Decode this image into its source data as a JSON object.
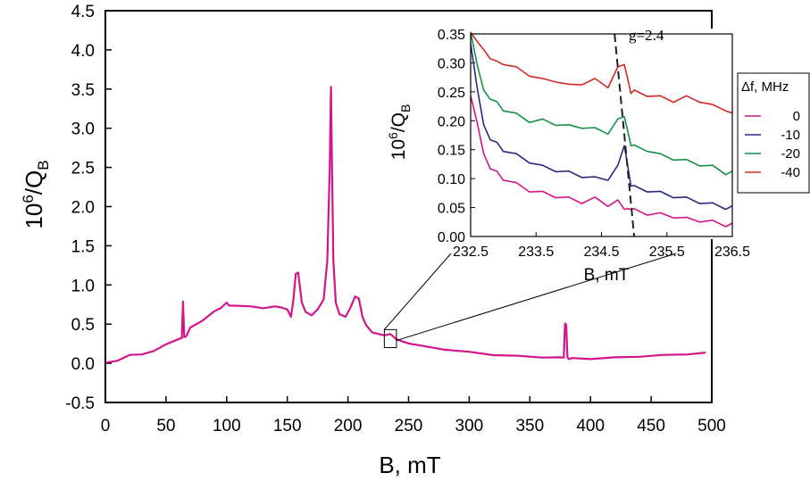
{
  "chart_data": [
    {
      "type": "line",
      "title": "",
      "xlabel": "B, mT",
      "ylabel": "10^6/Q_B",
      "ylabel_parts": {
        "base": "10",
        "sup": "6",
        "mid": "/Q",
        "sub": "B"
      },
      "xlim": [
        0,
        500
      ],
      "ylim": [
        -0.5,
        4.5
      ],
      "xticks": [
        0,
        50,
        100,
        150,
        200,
        250,
        300,
        350,
        400,
        450,
        500
      ],
      "yticks": [
        -0.5,
        0.0,
        0.5,
        1.0,
        1.5,
        2.0,
        2.5,
        3.0,
        3.5,
        4.0,
        4.5
      ],
      "ytick_labels": [
        "-0.5",
        "0.0",
        "0.5",
        "1.0",
        "1.5",
        "2.0",
        "2.5",
        "3.0",
        "3.5",
        "4.0",
        "4.5"
      ],
      "series": [
        {
          "name": "0 MHz",
          "color": "#d4148a",
          "x": [
            0,
            10,
            20,
            30,
            40,
            50,
            60,
            63,
            64,
            65,
            66,
            67,
            70,
            80,
            90,
            95,
            98,
            100,
            102,
            110,
            120,
            130,
            140,
            145,
            150,
            153,
            155,
            157,
            159,
            162,
            165,
            170,
            175,
            180,
            183,
            185,
            186,
            187,
            188,
            190,
            193,
            198,
            202,
            206,
            209,
            212,
            215,
            220,
            230,
            235,
            240,
            250,
            260,
            280,
            300,
            320,
            340,
            360,
            375,
            378,
            379,
            380,
            381,
            382,
            385,
            400,
            420,
            440,
            460,
            480,
            495
          ],
          "y": [
            0.0,
            0.04,
            0.1,
            0.12,
            0.15,
            0.25,
            0.3,
            0.33,
            0.78,
            0.34,
            0.33,
            0.36,
            0.45,
            0.55,
            0.66,
            0.71,
            0.74,
            0.78,
            0.73,
            0.74,
            0.72,
            0.71,
            0.72,
            0.72,
            0.68,
            0.6,
            0.8,
            1.15,
            1.15,
            0.78,
            0.65,
            0.62,
            0.68,
            0.82,
            1.3,
            2.5,
            3.52,
            2.4,
            1.3,
            0.78,
            0.62,
            0.6,
            0.7,
            0.86,
            0.82,
            0.6,
            0.48,
            0.4,
            0.35,
            0.38,
            0.3,
            0.26,
            0.22,
            0.18,
            0.14,
            0.11,
            0.09,
            0.08,
            0.07,
            0.08,
            0.5,
            0.5,
            0.07,
            0.06,
            0.06,
            0.06,
            0.07,
            0.09,
            0.1,
            0.12,
            0.13
          ]
        }
      ],
      "annotations": [
        {
          "type": "zoom-box",
          "x_range": [
            230,
            240
          ],
          "y_range": [
            0.2,
            0.43
          ]
        }
      ]
    },
    {
      "type": "line",
      "title": "",
      "xlabel": "B, mT",
      "ylabel": "10^6/Q_B",
      "ylabel_parts": {
        "base": "10",
        "sup": "6",
        "mid": "/Q",
        "sub": "B"
      },
      "xlim": [
        232.5,
        236.5
      ],
      "ylim": [
        0.0,
        0.35
      ],
      "xticks": [
        232.5,
        233.5,
        234.5,
        235.5,
        236.5
      ],
      "xtick_labels": [
        "232.5",
        "233.5",
        "234.5",
        "235.5",
        "236.5"
      ],
      "yticks": [
        0.0,
        0.05,
        0.1,
        0.15,
        0.2,
        0.25,
        0.3,
        0.35
      ],
      "ytick_labels": [
        "0.00",
        "0.05",
        "0.10",
        "0.15",
        "0.20",
        "0.25",
        "0.30",
        "0.35"
      ],
      "legend_title": "Δf, MHz",
      "legend_position": "right",
      "series": [
        {
          "name": "0",
          "color": "#d4148a",
          "x": [
            232.5,
            232.6,
            232.7,
            232.8,
            232.9,
            233.0,
            233.2,
            233.4,
            233.6,
            233.8,
            234.0,
            234.2,
            234.4,
            234.6,
            234.75,
            234.85,
            234.9,
            234.95,
            235.0,
            235.2,
            235.4,
            235.6,
            235.8,
            236.0,
            236.2,
            236.4,
            236.5
          ],
          "y": [
            0.24,
            0.2,
            0.14,
            0.12,
            0.11,
            0.1,
            0.09,
            0.08,
            0.075,
            0.07,
            0.065,
            0.06,
            0.065,
            0.055,
            0.06,
            0.05,
            0.045,
            0.05,
            0.045,
            0.04,
            0.038,
            0.035,
            0.03,
            0.028,
            0.025,
            0.02,
            0.02
          ]
        },
        {
          "name": "-10",
          "color": "#2b2a80",
          "x": [
            232.5,
            232.6,
            232.7,
            232.8,
            232.9,
            233.0,
            233.2,
            233.4,
            233.6,
            233.8,
            234.0,
            234.2,
            234.4,
            234.6,
            234.75,
            234.85,
            234.9,
            234.95,
            235.0,
            235.2,
            235.4,
            235.6,
            235.8,
            236.0,
            236.2,
            236.4,
            236.5
          ],
          "y": [
            0.33,
            0.26,
            0.19,
            0.17,
            0.16,
            0.15,
            0.14,
            0.13,
            0.12,
            0.115,
            0.11,
            0.105,
            0.1,
            0.1,
            0.12,
            0.16,
            0.12,
            0.09,
            0.085,
            0.08,
            0.075,
            0.07,
            0.065,
            0.06,
            0.055,
            0.05,
            0.05
          ]
        },
        {
          "name": "-20",
          "color": "#179148",
          "x": [
            232.5,
            232.6,
            232.7,
            232.8,
            232.9,
            233.0,
            233.2,
            233.4,
            233.6,
            233.8,
            234.0,
            234.2,
            234.4,
            234.6,
            234.75,
            234.85,
            234.9,
            234.95,
            235.0,
            235.2,
            235.4,
            235.6,
            235.8,
            236.0,
            236.2,
            236.4,
            236.5
          ],
          "y": [
            0.35,
            0.3,
            0.25,
            0.24,
            0.23,
            0.22,
            0.21,
            0.2,
            0.2,
            0.195,
            0.19,
            0.19,
            0.185,
            0.18,
            0.2,
            0.21,
            0.18,
            0.16,
            0.155,
            0.15,
            0.14,
            0.135,
            0.13,
            0.125,
            0.12,
            0.11,
            0.11
          ]
        },
        {
          "name": "-40",
          "color": "#d12a2a",
          "x": [
            232.5,
            232.6,
            232.7,
            232.8,
            232.9,
            233.0,
            233.2,
            233.4,
            233.6,
            233.8,
            234.0,
            234.2,
            234.4,
            234.6,
            234.75,
            234.85,
            234.9,
            234.95,
            235.0,
            235.2,
            235.4,
            235.6,
            235.8,
            236.0,
            236.2,
            236.4,
            236.5
          ],
          "y": [
            0.35,
            0.34,
            0.32,
            0.31,
            0.3,
            0.3,
            0.29,
            0.28,
            0.27,
            0.27,
            0.26,
            0.265,
            0.27,
            0.26,
            0.29,
            0.3,
            0.27,
            0.25,
            0.25,
            0.245,
            0.24,
            0.235,
            0.24,
            0.235,
            0.225,
            0.22,
            0.21
          ]
        }
      ],
      "annotations": [
        {
          "type": "dashed-line",
          "label": "g=2.4",
          "x": [
            234.7,
            235.0
          ],
          "y": [
            0.35,
            0.0
          ]
        }
      ]
    }
  ]
}
